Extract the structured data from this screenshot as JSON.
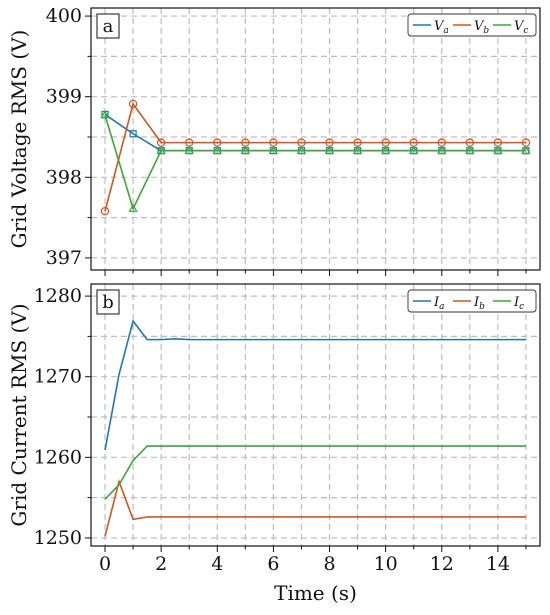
{
  "chart_data": [
    {
      "type": "line",
      "panel_label": "a",
      "ylabel": "Grid Voltage RMS (V)",
      "xlabel": "",
      "xlim": [
        -0.5,
        15.5
      ],
      "ylim": [
        396.85,
        400.1
      ],
      "xticks": [
        0,
        2,
        4,
        6,
        8,
        10,
        12,
        14
      ],
      "yticks": [
        397,
        398,
        399,
        400
      ],
      "x_minor_step": 1,
      "y_minor_step": 0.5,
      "grid": true,
      "legend_position": "top-right",
      "series": [
        {
          "name": "Va",
          "label_main": "V",
          "label_sub": "a",
          "color": "#1f77b4",
          "marker": "square",
          "x": [
            0,
            1,
            2,
            3,
            4,
            5,
            6,
            7,
            8,
            9,
            10,
            11,
            12,
            13,
            14,
            15
          ],
          "y": [
            398.78,
            398.54,
            398.33,
            398.33,
            398.33,
            398.33,
            398.33,
            398.33,
            398.33,
            398.33,
            398.33,
            398.33,
            398.33,
            398.33,
            398.33,
            398.33
          ]
        },
        {
          "name": "Vb",
          "label_main": "V",
          "label_sub": "b",
          "color": "#d95319",
          "marker": "circle",
          "x": [
            0,
            1,
            2,
            3,
            4,
            5,
            6,
            7,
            8,
            9,
            10,
            11,
            12,
            13,
            14,
            15
          ],
          "y": [
            397.58,
            398.91,
            398.43,
            398.43,
            398.43,
            398.43,
            398.43,
            398.43,
            398.43,
            398.43,
            398.43,
            398.43,
            398.43,
            398.43,
            398.43,
            398.43
          ]
        },
        {
          "name": "Vc",
          "label_main": "V",
          "label_sub": "c",
          "color": "#3aa53a",
          "marker": "triangle",
          "x": [
            0,
            1,
            2,
            3,
            4,
            5,
            6,
            7,
            8,
            9,
            10,
            11,
            12,
            13,
            14,
            15
          ],
          "y": [
            398.77,
            397.61,
            398.33,
            398.33,
            398.33,
            398.33,
            398.33,
            398.33,
            398.33,
            398.33,
            398.33,
            398.33,
            398.33,
            398.33,
            398.33,
            398.33
          ]
        }
      ]
    },
    {
      "type": "line",
      "panel_label": "b",
      "ylabel": "Grid Current RMS (V)",
      "xlabel": "Time (s)",
      "xlim": [
        -0.5,
        15.5
      ],
      "ylim": [
        1249,
        1281.5
      ],
      "xticks": [
        0,
        2,
        4,
        6,
        8,
        10,
        12,
        14
      ],
      "yticks": [
        1250,
        1260,
        1270,
        1280
      ],
      "x_minor_step": 1,
      "y_minor_step": 5,
      "grid": true,
      "legend_position": "top-right",
      "series": [
        {
          "name": "Ia",
          "label_main": "I",
          "label_sub": "a",
          "color": "#1f77b4",
          "marker": "none",
          "x": [
            0,
            0.5,
            1,
            1.5,
            2,
            2.5,
            3,
            4,
            5,
            6,
            7,
            8,
            9,
            10,
            11,
            12,
            13,
            14,
            15
          ],
          "y": [
            1260.9,
            1270.3,
            1276.9,
            1274.6,
            1274.6,
            1274.7,
            1274.6,
            1274.6,
            1274.6,
            1274.6,
            1274.6,
            1274.6,
            1274.6,
            1274.6,
            1274.6,
            1274.6,
            1274.6,
            1274.6,
            1274.6
          ]
        },
        {
          "name": "Ib",
          "label_main": "I",
          "label_sub": "b",
          "color": "#d95319",
          "marker": "none",
          "x": [
            0,
            0.5,
            1,
            1.5,
            2,
            2.5,
            3,
            4,
            5,
            6,
            7,
            8,
            9,
            10,
            11,
            12,
            13,
            14,
            15
          ],
          "y": [
            1250.2,
            1257.0,
            1252.3,
            1252.6,
            1252.6,
            1252.6,
            1252.6,
            1252.6,
            1252.6,
            1252.6,
            1252.6,
            1252.6,
            1252.6,
            1252.6,
            1252.6,
            1252.6,
            1252.6,
            1252.6,
            1252.6
          ]
        },
        {
          "name": "Ic",
          "label_main": "I",
          "label_sub": "c",
          "color": "#3aa53a",
          "marker": "none",
          "x": [
            0,
            0.5,
            1,
            1.5,
            2,
            2.5,
            3,
            4,
            5,
            6,
            7,
            8,
            9,
            10,
            11,
            12,
            13,
            14,
            15
          ],
          "y": [
            1254.8,
            1256.6,
            1259.6,
            1261.4,
            1261.4,
            1261.4,
            1261.4,
            1261.4,
            1261.4,
            1261.4,
            1261.4,
            1261.4,
            1261.4,
            1261.4,
            1261.4,
            1261.4,
            1261.4,
            1261.4,
            1261.4
          ]
        }
      ]
    }
  ]
}
